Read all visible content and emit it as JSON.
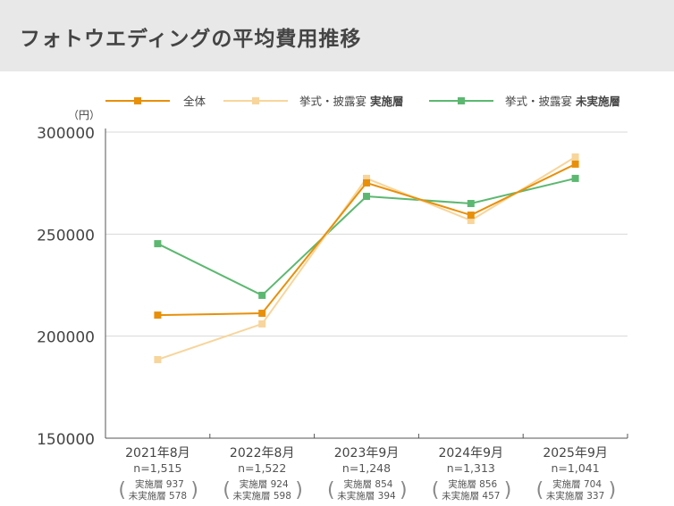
{
  "page_title": "フォトウエディングの平均費用推移",
  "chart_data": {
    "type": "line",
    "title": "フォトウエディングの平均費用推移",
    "ylabel": "（円）",
    "ylim": [
      150000,
      300000
    ],
    "yticks": [
      150000,
      200000,
      250000,
      300000
    ],
    "ytick_labels": [
      "150000",
      "200000",
      "250000",
      "300000"
    ],
    "grid": true,
    "legend_position": "top",
    "categories": [
      "2021年8月",
      "2022年8月",
      "2023年9月",
      "2024年9月",
      "2025年9月"
    ],
    "sample_sizes": [
      "n=1,515",
      "n=1,522",
      "n=1,248",
      "n=1,313",
      "n=1,041"
    ],
    "sub_samples": [
      {
        "held": "実施層 937",
        "not_held": "未実施層 578"
      },
      {
        "held": "実施層 924",
        "not_held": "未実施層 598"
      },
      {
        "held": "実施層 854",
        "not_held": "未実施層 394"
      },
      {
        "held": "実施層 856",
        "not_held": "未実施層 457"
      },
      {
        "held": "実施層 704",
        "not_held": "未実施層 337"
      }
    ],
    "series": [
      {
        "name": "全体",
        "name_bold": "",
        "color": "#e8900a",
        "values": [
          210300,
          211200,
          275100,
          259300,
          284300
        ]
      },
      {
        "name": "挙式・披露宴 ",
        "name_bold": "実施層",
        "color": "#f7d59b",
        "values": [
          188500,
          206000,
          277300,
          256700,
          287800
        ]
      },
      {
        "name": "挙式・披露宴 ",
        "name_bold": "未実施層",
        "color": "#5cb870",
        "values": [
          245300,
          220000,
          268500,
          265000,
          277300
        ]
      }
    ]
  }
}
